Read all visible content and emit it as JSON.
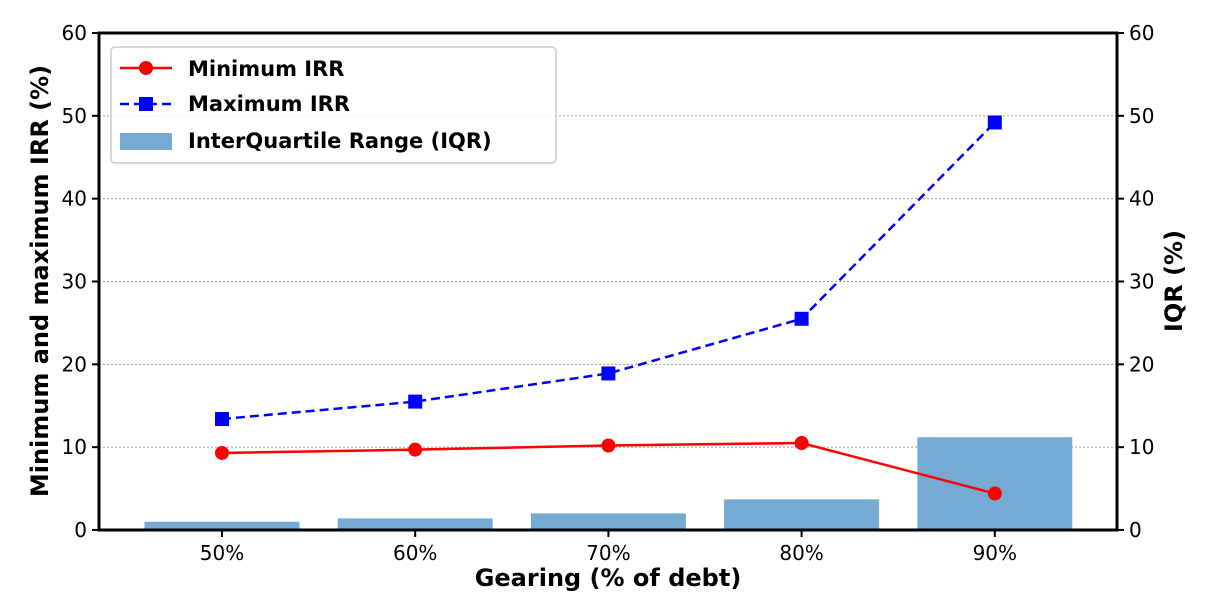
{
  "chart_data": {
    "type": "bar",
    "title": "",
    "xlabel": "Gearing (% of debt)",
    "ylabel_left": "Minimum and maximum IRR (%)",
    "ylabel_right": "IQR (%)",
    "categories": [
      "50%",
      "60%",
      "70%",
      "80%",
      "90%"
    ],
    "ylim_left": [
      0,
      60
    ],
    "ylim_right": [
      0,
      60
    ],
    "yticks_left": [
      "0",
      "10",
      "20",
      "30",
      "40",
      "50",
      "60"
    ],
    "yticks_right": [
      "0",
      "10",
      "20",
      "30",
      "40",
      "50",
      "60"
    ],
    "grid": "horizontal-dotted",
    "legend_position": "top-left",
    "series": [
      {
        "name": "Minimum IRR",
        "kind": "line",
        "axis": "left",
        "style": "solid",
        "marker": "circle",
        "color": "#ff0000",
        "values": [
          9.3,
          9.7,
          10.2,
          10.5,
          4.4
        ]
      },
      {
        "name": "Maximum IRR",
        "kind": "line",
        "axis": "left",
        "style": "dashed",
        "marker": "square",
        "color": "#0000ff",
        "values": [
          13.4,
          15.5,
          18.9,
          25.5,
          49.2
        ]
      },
      {
        "name": "InterQuartile Range (IQR)",
        "kind": "bar",
        "axis": "right",
        "color": "#75aad2",
        "values": [
          1.0,
          1.4,
          2.0,
          3.7,
          11.2
        ]
      }
    ]
  }
}
